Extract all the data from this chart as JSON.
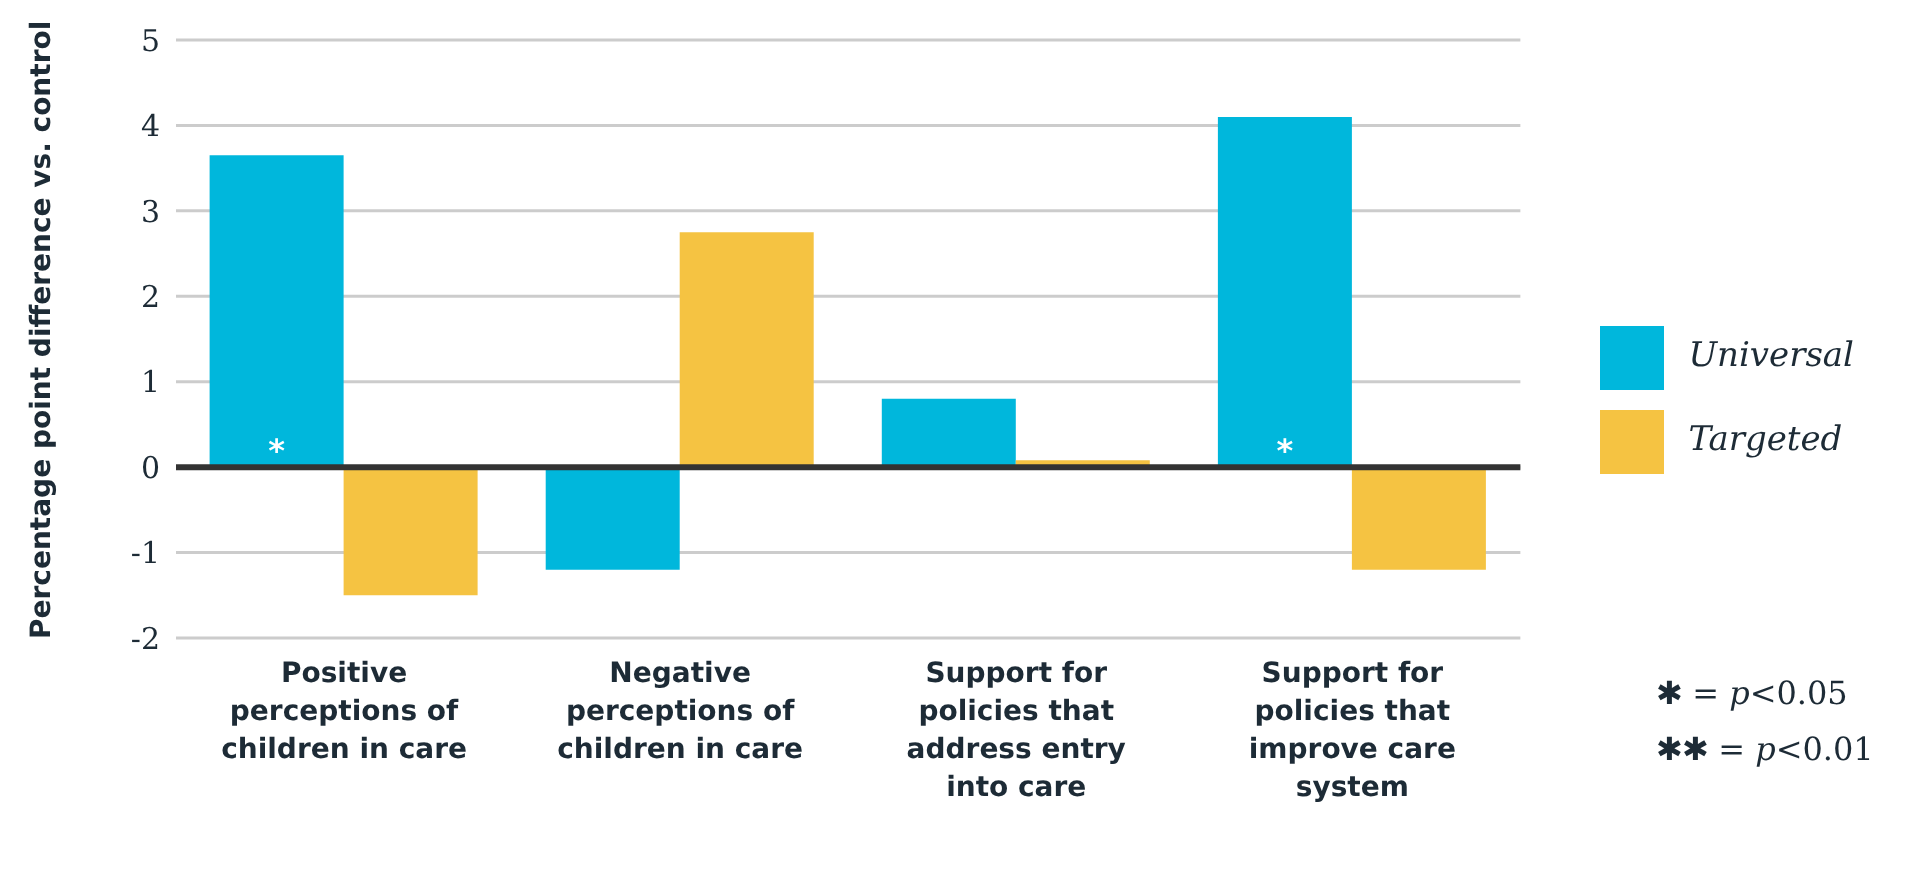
{
  "chart_data": {
    "type": "bar",
    "ylabel": "Percentage point difference vs. control",
    "categories": [
      "Positive perceptions of children in care",
      "Negative perceptions of children in care",
      "Support for policies that address entry into care",
      "Support for policies that improve care system"
    ],
    "series": [
      {
        "name": "Universal",
        "color": "#00b7dc",
        "values": [
          3.65,
          -1.2,
          0.8,
          4.1
        ]
      },
      {
        "name": "Targeted",
        "color": "#f5c342",
        "values": [
          -1.5,
          2.75,
          0.08,
          -1.2
        ]
      }
    ],
    "ylim": [
      -2,
      5
    ],
    "yticks": [
      -2,
      -1,
      0,
      1,
      2,
      3,
      4,
      5
    ],
    "grid": "y",
    "legend": "right",
    "ref_lines": [
      {
        "axis": "y",
        "value": 0,
        "color": "#333333"
      }
    ],
    "annotations": [
      {
        "text": "*",
        "x": "Positive perceptions of children in care",
        "y": 0.3
      },
      {
        "text": "*",
        "x": "Support for policies that improve care system",
        "y": 0.3
      },
      "✱ = p<0.05",
      "✱✱ = p<0.01"
    ]
  }
}
